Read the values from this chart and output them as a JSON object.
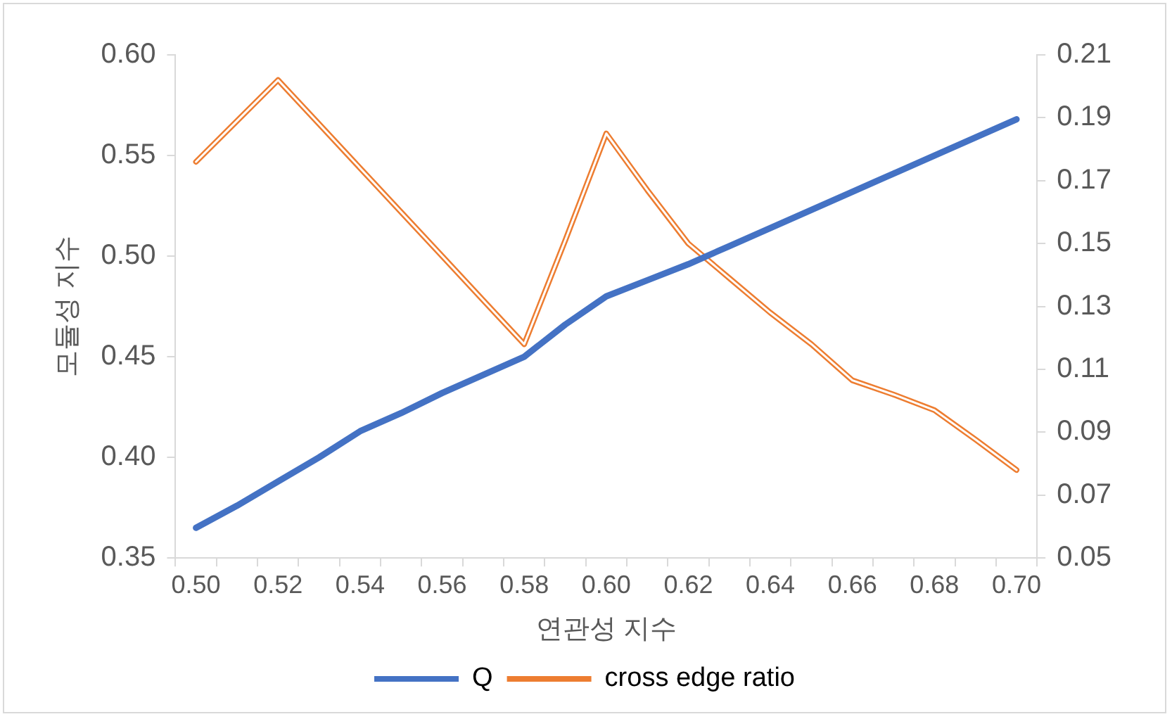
{
  "chart_data": {
    "type": "line",
    "xlabel": "연관성 지수",
    "ylabel": "모듈성 지수",
    "categories": [
      "0.50",
      null,
      "0.52",
      null,
      "0.54",
      null,
      "0.56",
      null,
      "0.58",
      null,
      "0.60",
      null,
      "0.62",
      null,
      "0.64",
      null,
      "0.66",
      null,
      "0.68",
      null,
      "0.70"
    ],
    "ylim": [
      0.35,
      0.6
    ],
    "yticks": [
      0.35,
      {
        "value": 0.4,
        "label": "0.40"
      },
      0.45,
      {
        "value": 0.5,
        "label": "0.50"
      },
      0.55,
      {
        "value": 0.6,
        "label": "0.60"
      }
    ],
    "y2lim": [
      0.05,
      0.21
    ],
    "y2ticks": [
      0.05,
      0.07,
      0.09,
      0.11,
      0.13,
      0.15,
      0.17,
      0.19,
      0.21
    ],
    "grid": false,
    "legend": "bottom",
    "marker": "none",
    "series": [
      {
        "name": "Q",
        "color": "#4472c4",
        "values": [
          0.365,
          0.376,
          0.388,
          0.4,
          0.413,
          0.422,
          0.432,
          0.441,
          0.45,
          0.466,
          0.48,
          0.488,
          0.496,
          0.505,
          0.514,
          0.523,
          0.532,
          0.541,
          0.55,
          0.559,
          0.568
        ]
      },
      {
        "name": "cross edge ratio",
        "color": "#ed7d31",
        "axis": "y2",
        "values": [
          0.176,
          0.189,
          0.202,
          0.188,
          0.174,
          0.16,
          0.146,
          0.132,
          0.118,
          0.151,
          0.185,
          0.167,
          0.15,
          0.139,
          0.128,
          0.118,
          0.1065,
          0.102,
          0.097,
          0.0877,
          0.078
        ]
      }
    ]
  }
}
